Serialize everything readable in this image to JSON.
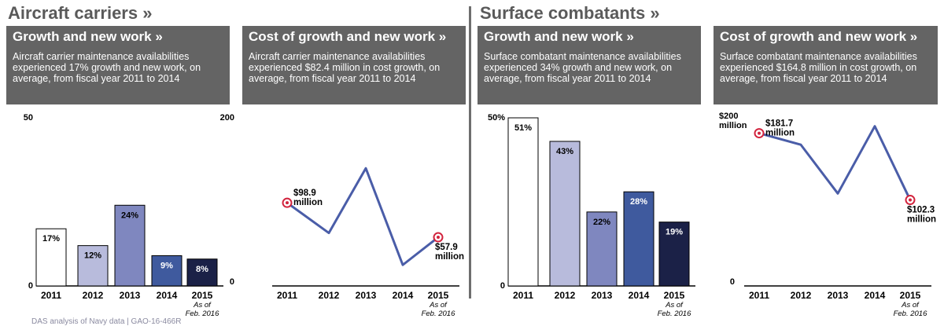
{
  "sections": {
    "carriers": "Aircraft carriers »",
    "surface": "Surface combatants »"
  },
  "panels": [
    {
      "title": "Growth and new work »",
      "desc": "Aircraft carrier maintenance availabilities experienced 17% growth and new work, on average, from fiscal year 2011 to 2014"
    },
    {
      "title": "Cost of growth and new work »",
      "desc": "Aircraft carrier maintenance availabilities experienced $82.4 million in cost growth, on average, from fiscal year 2011 to 2014"
    },
    {
      "title": "Growth and new work »",
      "desc": "Surface combatant maintenance availabilities experienced 34% growth and new work, on average, from fiscal year 2011 to 2014"
    },
    {
      "title": "Cost of growth and new work »",
      "desc": "Surface combatant maintenance availabilities experienced $164.8 million in cost growth, on average, from fiscal year 2011 to 2014"
    }
  ],
  "bar_colors": [
    "#ffffff",
    "#b8bbdc",
    "#7f87bf",
    "#3f5a9e",
    "#1b2147"
  ],
  "line_color": "#4a5da8",
  "marker_color": "#d2233d",
  "source_note": "DAS analysis of Navy data | GAO-16-466R",
  "chart_data": [
    {
      "type": "bar",
      "title": "Growth and new work",
      "categories": [
        "2011",
        "2012",
        "2013",
        "2014",
        "2015"
      ],
      "category_note": "As of Feb. 2016",
      "values": [
        17,
        12,
        24,
        9,
        8
      ],
      "labels": [
        "17%",
        "12%",
        "24%",
        "9%",
        "8%"
      ],
      "ylim": [
        0,
        50
      ],
      "yticks": [
        "0",
        "50"
      ]
    },
    {
      "type": "line",
      "title": "Cost of growth and new work",
      "categories": [
        "2011",
        "2012",
        "2013",
        "2014",
        "2015"
      ],
      "category_note": "As of Feb. 2016",
      "values": [
        98.9,
        63,
        140,
        25,
        57.9
      ],
      "annotations": [
        {
          "index": 0,
          "lines": [
            "$98.9",
            "million"
          ]
        },
        {
          "index": 4,
          "lines": [
            "$57.9",
            "million"
          ]
        }
      ],
      "ylim": [
        0,
        200
      ],
      "yticks": [
        "0",
        "200"
      ]
    },
    {
      "type": "bar",
      "title": "Growth and new work",
      "categories": [
        "2011",
        "2012",
        "2013",
        "2014",
        "2015"
      ],
      "category_note": "As of Feb. 2016",
      "values": [
        51,
        43,
        22,
        28,
        19
      ],
      "labels": [
        "51%",
        "43%",
        "22%",
        "28%",
        "19%"
      ],
      "ylim": [
        0,
        50
      ],
      "yticks": [
        "0",
        "50%"
      ]
    },
    {
      "type": "line",
      "title": "Cost of growth and new work",
      "categories": [
        "2011",
        "2012",
        "2013",
        "2014",
        "2015"
      ],
      "category_note": "As of Feb. 2016",
      "values": [
        181.7,
        168,
        110,
        190,
        102.3
      ],
      "annotations": [
        {
          "index": 0,
          "lines": [
            "$181.7",
            "million"
          ]
        },
        {
          "index": 4,
          "lines": [
            "$102.3",
            "million"
          ]
        }
      ],
      "ylim": [
        0,
        200
      ],
      "yticks": [
        "0",
        "$200",
        "million"
      ]
    }
  ]
}
